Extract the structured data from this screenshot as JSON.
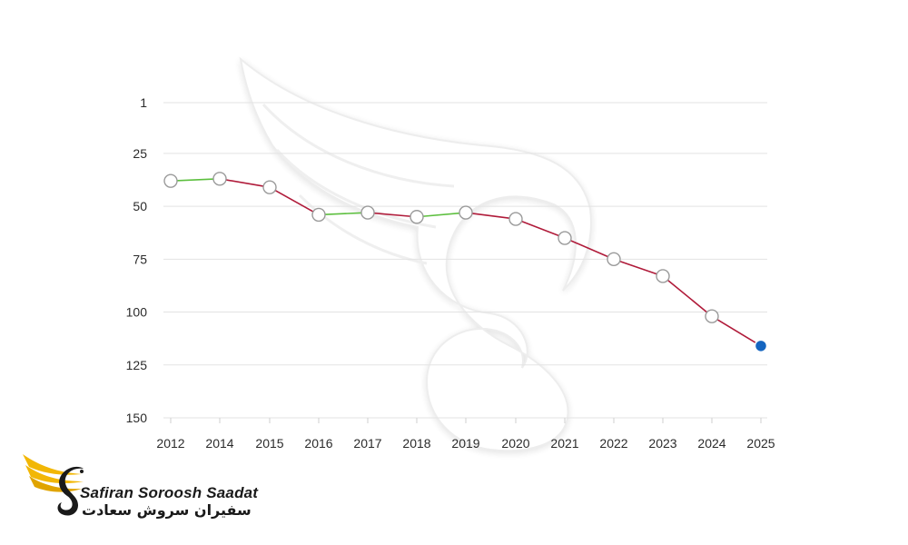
{
  "chart_data": {
    "type": "line",
    "title": "",
    "xlabel": "",
    "ylabel": "",
    "categories": [
      "2012",
      "2014",
      "2015",
      "2016",
      "2017",
      "2018",
      "2019",
      "2020",
      "2021",
      "2022",
      "2023",
      "2024",
      "2025"
    ],
    "series": [
      {
        "values": [
          38,
          37,
          41,
          54,
          53,
          55,
          53,
          56,
          65,
          75,
          83,
          102,
          116
        ]
      }
    ],
    "y_ticks": [
      "1",
      "25",
      "50",
      "75",
      "100",
      "125",
      "150"
    ],
    "ylim": [
      150,
      1
    ],
    "y_inverted": true,
    "grid": true,
    "colors": {
      "improving_segment": "#5cbf3e",
      "declining_segment": "#b01b3a",
      "marker_fill": "#ffffff",
      "marker_stroke": "#9a9a9a",
      "last_marker": "#1565c0",
      "gridline": "#e3e3e3"
    }
  },
  "logo": {
    "name_en": "Safiran Soroosh Saadat",
    "name_fa": "سفیران سروش سعادت",
    "icon": "winged-s-logo-icon"
  },
  "watermark": {
    "icon": "swan-wing-watermark-icon"
  }
}
